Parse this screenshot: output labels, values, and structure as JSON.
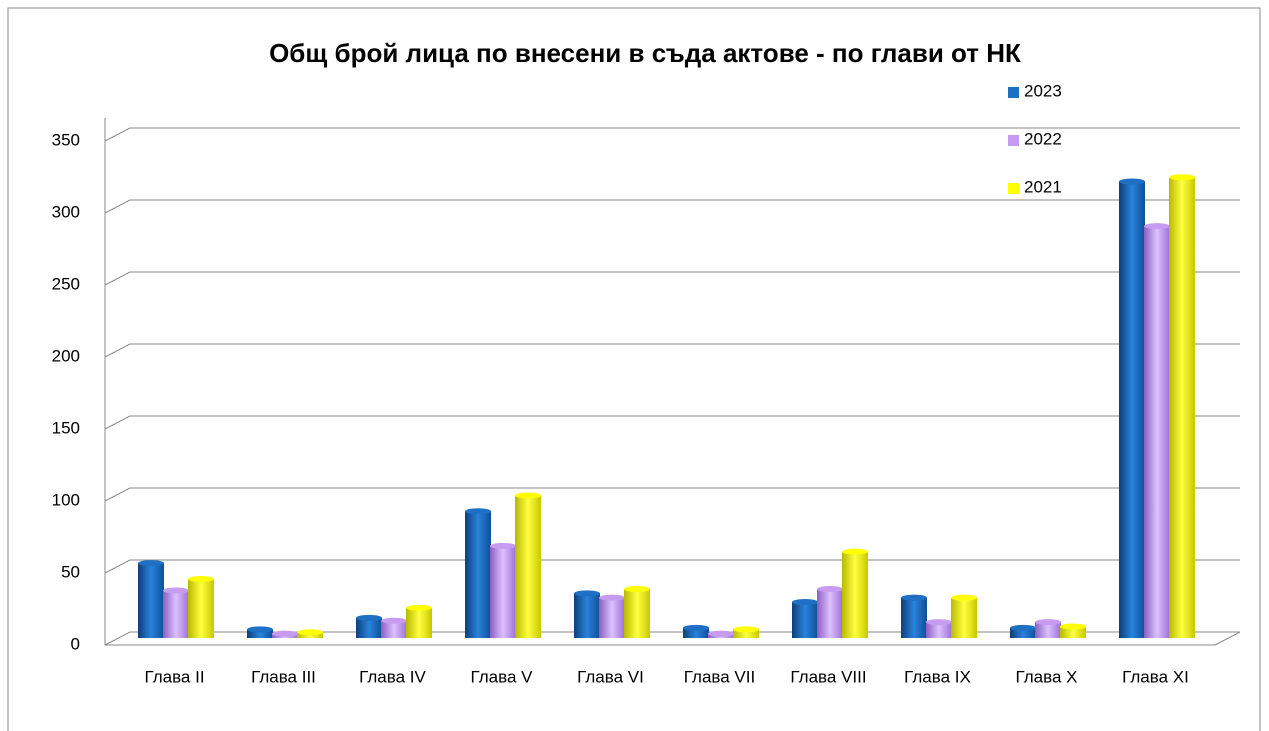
{
  "chart_data": {
    "type": "bar",
    "title": "Общ брой лица по внесени в съда актове - по глави от НК",
    "categories": [
      "Глава II",
      "Глава III",
      "Глава IV",
      "Глава V",
      "Глава VI",
      "Глава VII",
      "Глава VIII",
      "Глава IX",
      "Глава X",
      "Глава XI"
    ],
    "series": [
      {
        "name": "2023",
        "color": "#1f6fc4",
        "values": [
          52,
          6,
          14,
          88,
          31,
          7,
          25,
          28,
          7,
          317
        ]
      },
      {
        "name": "2022",
        "color": "#c79cf0",
        "values": [
          33,
          3,
          12,
          64,
          28,
          3,
          34,
          11,
          11,
          286
        ]
      },
      {
        "name": "2021",
        "color": "#ffff00",
        "values": [
          41,
          4,
          21,
          99,
          34,
          6,
          60,
          28,
          8,
          320
        ]
      }
    ],
    "ylim": [
      0,
      350
    ],
    "yticks": [
      0,
      50,
      100,
      150,
      200,
      250,
      300,
      350
    ],
    "grid": true,
    "legend": "top-right"
  }
}
